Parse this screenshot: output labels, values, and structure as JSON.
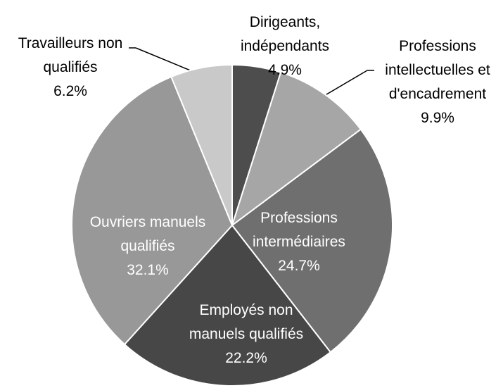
{
  "chart_data": {
    "type": "pie",
    "categories": [
      "Dirigeants,\nindépendants",
      "Professions\nintellectuelles et\nd'encadrement",
      "Professions\nintermédiaires",
      "Employés non\nmanuels qualifiés",
      "Ouvriers manuels\nqualifiés",
      "Travailleurs non\nqualifiés"
    ],
    "values": [
      4.9,
      9.9,
      24.7,
      22.2,
      32.1,
      6.2
    ],
    "value_labels": [
      "4.9%",
      "9.9%",
      "24.7%",
      "22.2%",
      "32.1%",
      "6.2%"
    ],
    "colors": [
      "#4d4d4d",
      "#a6a6a6",
      "#6f6f6f",
      "#474747",
      "#989898",
      "#c9c9c9"
    ]
  }
}
